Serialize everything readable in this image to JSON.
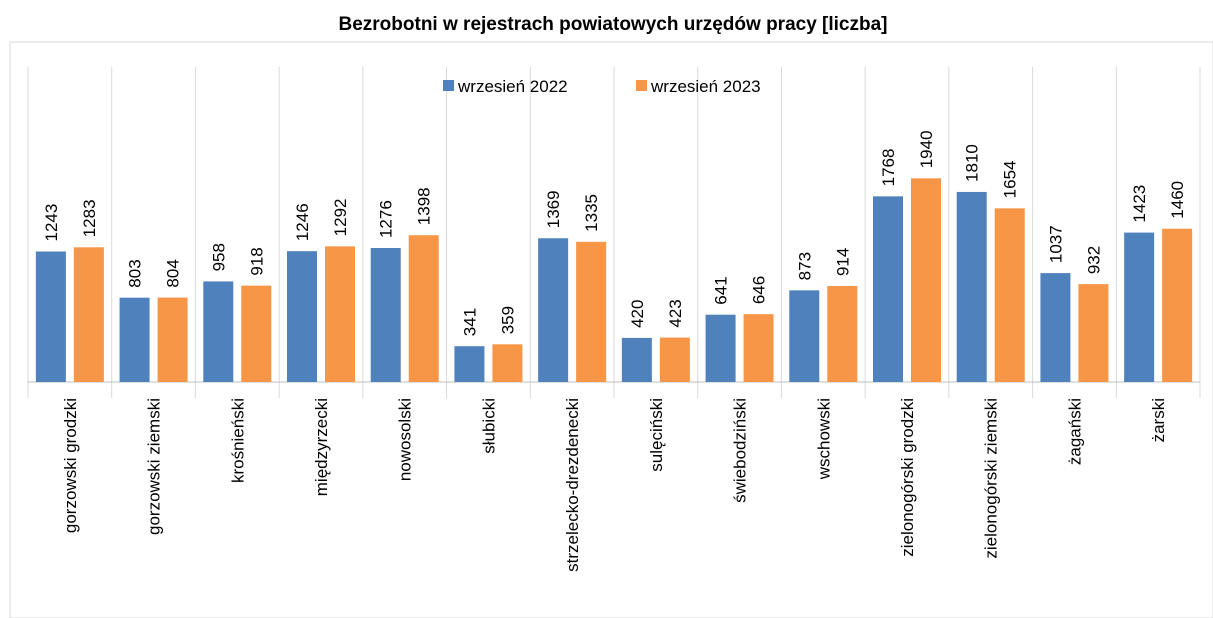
{
  "chart_data": {
    "type": "bar",
    "title": "Bezrobotni w rejestrach powiatowych urzędów pracy [liczba]",
    "categories": [
      "gorzowski grodzki",
      "gorzowski ziemski",
      "krośnieński",
      "międzyrzecki",
      "nowosolski",
      "słubicki",
      "strzelecko-drezdenecki",
      "sulęciński",
      "świebodziński",
      "wschowski",
      "zielonogórski grodzki",
      "zielonogórski ziemski",
      "żagański",
      "żarski"
    ],
    "series": [
      {
        "name": "wrzesień 2022",
        "color": "#4f81bd",
        "values": [
          1243,
          803,
          958,
          1246,
          1276,
          341,
          1369,
          420,
          641,
          873,
          1768,
          1810,
          1037,
          1423
        ]
      },
      {
        "name": "wrzesień 2023",
        "color": "#f79646",
        "values": [
          1283,
          804,
          918,
          1292,
          1398,
          359,
          1335,
          423,
          646,
          914,
          1940,
          1654,
          932,
          1460
        ]
      }
    ],
    "ylim": [
      0,
      3000
    ],
    "legend": "top"
  }
}
